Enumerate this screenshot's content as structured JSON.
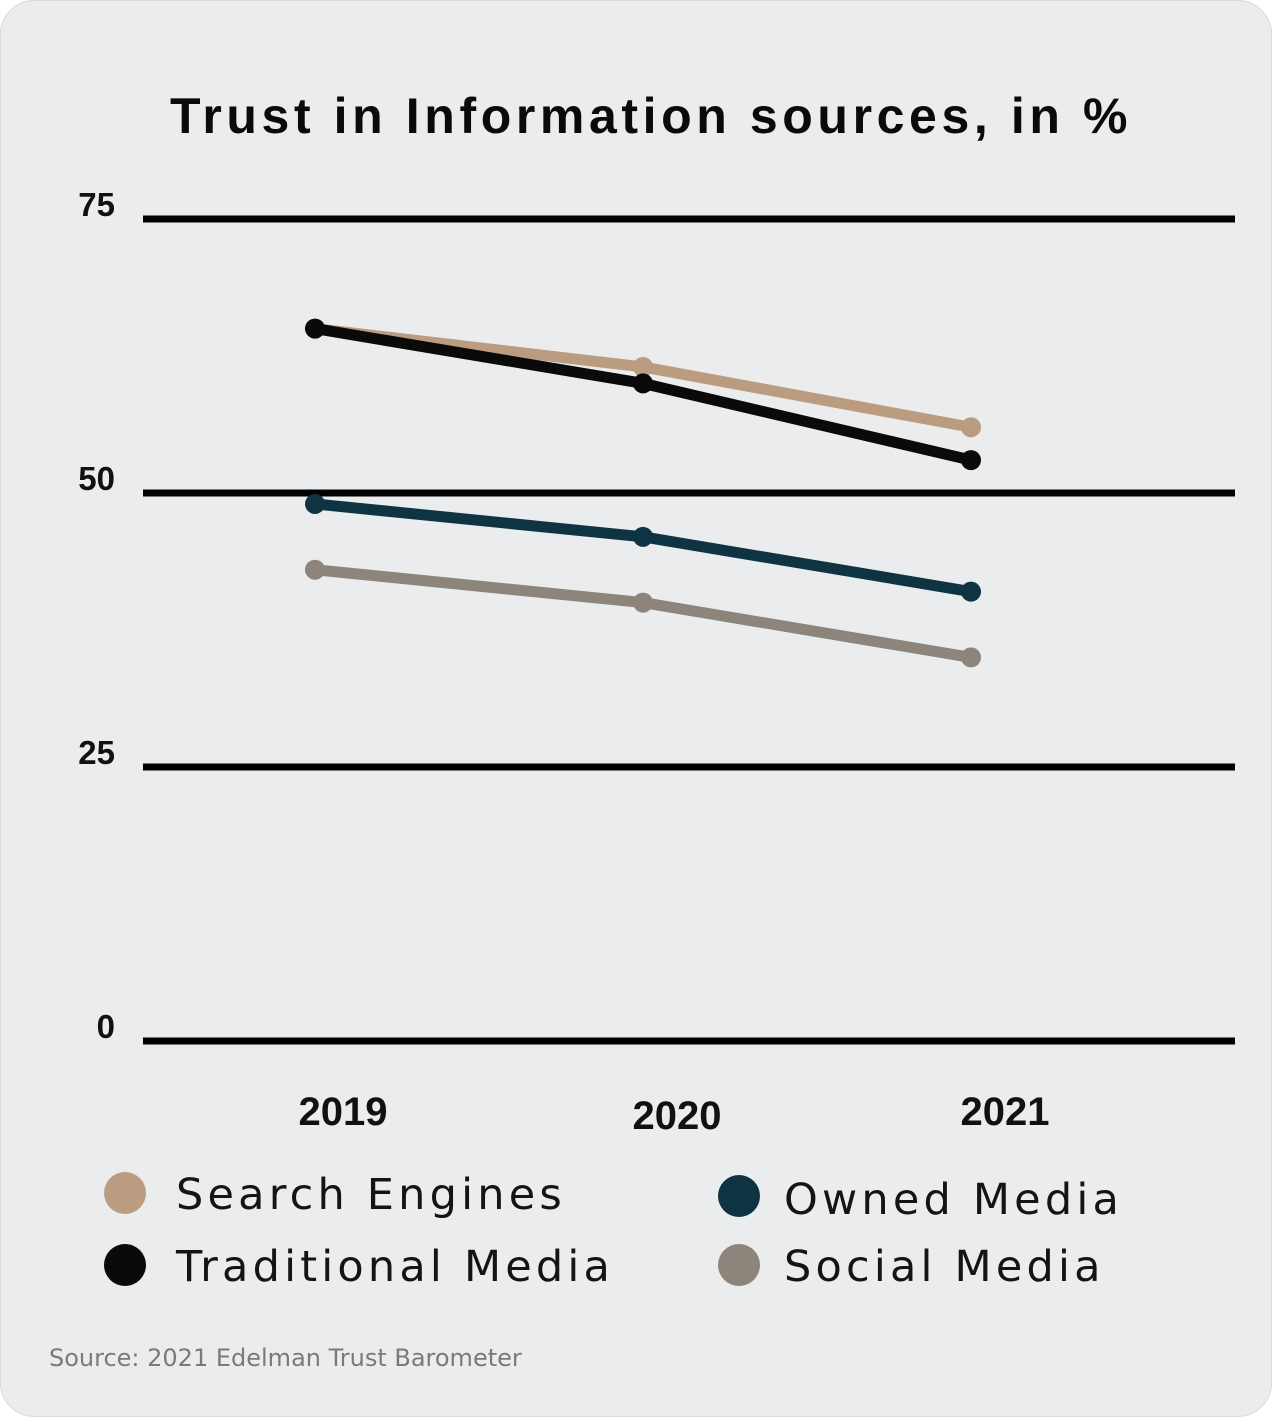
{
  "chart_data": {
    "type": "line",
    "title": "Trust in Information sources, in %",
    "x": [
      "2019",
      "2020",
      "2021"
    ],
    "y_ticks": [
      "75",
      "50",
      "25",
      "0"
    ],
    "ylim": [
      0,
      75
    ],
    "grid": true,
    "legend_placement": "bottom",
    "series": [
      {
        "name": "Search Engines",
        "color": "#bb9c80",
        "values": [
          65,
          61.5,
          56
        ]
      },
      {
        "name": "Traditional Media",
        "color": "#0a0a0a",
        "values": [
          65,
          60,
          53
        ]
      },
      {
        "name": "Owned Media",
        "color": "#0e3343",
        "values": [
          49,
          46,
          41
        ]
      },
      {
        "name": "Social Media",
        "color": "#8d847b",
        "values": [
          43,
          40,
          35
        ]
      }
    ],
    "source": "Source: 2021 Edelman Trust Barometer"
  }
}
